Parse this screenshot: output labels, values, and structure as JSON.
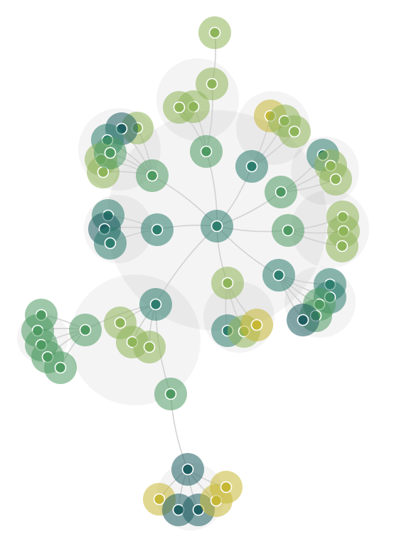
{
  "graph": {
    "type": "radial-cluster-network",
    "palette": {
      "teal-dark": "#1f5f62",
      "teal": "#2e7e6f",
      "green": "#4e9a62",
      "olive": "#8fb55a",
      "yellow": "#c6b835"
    },
    "edge_color": "#d2d2d2",
    "halo_color": "#f2f2f2",
    "core_stroke": "#ffffff",
    "labels_shown": false
  }
}
